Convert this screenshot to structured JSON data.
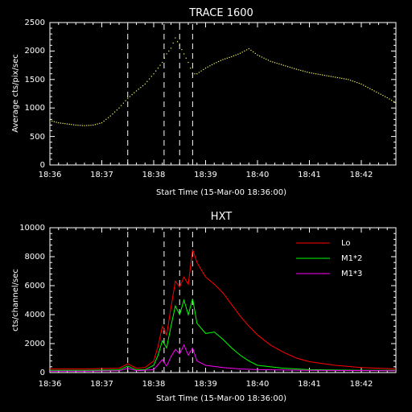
{
  "chart_data": [
    {
      "type": "scatter",
      "title": "TRACE 1600",
      "xlabel": "Start Time (15-Mar-00 18:36:00)",
      "ylabel": "Average cts/pix/sec",
      "xlim": [
        "18:36:00",
        "18:42:40"
      ],
      "ylim": [
        0,
        2500
      ],
      "x_ticks": [
        "18:36",
        "18:37",
        "18:38",
        "18:39",
        "18:40",
        "18:41",
        "18:42"
      ],
      "y_ticks": [
        "0",
        "500",
        "1000",
        "1500",
        "2000",
        "2500"
      ],
      "vlines": [
        "18:37:30",
        "18:38:12",
        "18:38:30",
        "18:38:45"
      ],
      "series": [
        {
          "color": "#ffff66",
          "points": [
            [
              "18:36:00",
              780
            ],
            [
              "18:36:10",
              740
            ],
            [
              "18:36:20",
              720
            ],
            [
              "18:36:30",
              700
            ],
            [
              "18:36:40",
              690
            ],
            [
              "18:36:50",
              700
            ],
            [
              "18:37:00",
              740
            ],
            [
              "18:37:10",
              860
            ],
            [
              "18:37:20",
              1000
            ],
            [
              "18:37:30",
              1170
            ],
            [
              "18:37:40",
              1300
            ],
            [
              "18:37:50",
              1420
            ],
            [
              "18:38:00",
              1600
            ],
            [
              "18:38:05",
              1700
            ],
            [
              "18:38:10",
              1800
            ],
            [
              "18:38:15",
              1950
            ],
            [
              "18:38:20",
              2050
            ],
            [
              "18:38:25",
              2230
            ],
            [
              "18:38:30",
              2100
            ],
            [
              "18:38:35",
              1950
            ],
            [
              "18:38:40",
              1800
            ],
            [
              "18:38:45",
              1600
            ],
            [
              "18:38:50",
              1600
            ],
            [
              "18:39:00",
              1700
            ],
            [
              "18:39:10",
              1780
            ],
            [
              "18:39:20",
              1850
            ],
            [
              "18:39:30",
              1900
            ],
            [
              "18:39:40",
              1960
            ],
            [
              "18:39:50",
              2040
            ],
            [
              "18:40:00",
              1930
            ],
            [
              "18:40:15",
              1820
            ],
            [
              "18:40:30",
              1750
            ],
            [
              "18:40:45",
              1680
            ],
            [
              "18:41:00",
              1620
            ],
            [
              "18:41:15",
              1580
            ],
            [
              "18:41:30",
              1540
            ],
            [
              "18:41:45",
              1500
            ],
            [
              "18:42:00",
              1420
            ],
            [
              "18:42:15",
              1300
            ],
            [
              "18:42:30",
              1180
            ],
            [
              "18:42:40",
              1090
            ]
          ]
        }
      ]
    },
    {
      "type": "line",
      "title": "HXT",
      "xlabel": "Start Time (15-Mar-00 18:36:00)",
      "ylabel": "cts/channel/sec",
      "xlim": [
        "18:36:00",
        "18:42:40"
      ],
      "ylim": [
        0,
        10000
      ],
      "x_ticks": [
        "18:36",
        "18:37",
        "18:38",
        "18:39",
        "18:40",
        "18:41",
        "18:42"
      ],
      "y_ticks": [
        "0",
        "2000",
        "4000",
        "6000",
        "8000",
        "10000"
      ],
      "vlines": [
        "18:37:30",
        "18:38:12",
        "18:38:30",
        "18:38:45"
      ],
      "legend_position": "top-right",
      "series": [
        {
          "name": "Lo",
          "color": "#ff0000",
          "points": [
            [
              "18:36:00",
              250
            ],
            [
              "18:36:40",
              250
            ],
            [
              "18:37:20",
              300
            ],
            [
              "18:37:30",
              600
            ],
            [
              "18:37:40",
              300
            ],
            [
              "18:37:50",
              350
            ],
            [
              "18:38:00",
              800
            ],
            [
              "18:38:05",
              1800
            ],
            [
              "18:38:10",
              3200
            ],
            [
              "18:38:15",
              2600
            ],
            [
              "18:38:20",
              4500
            ],
            [
              "18:38:25",
              6300
            ],
            [
              "18:38:30",
              5900
            ],
            [
              "18:38:35",
              6600
            ],
            [
              "18:38:40",
              6100
            ],
            [
              "18:38:45",
              8500
            ],
            [
              "18:38:50",
              7600
            ],
            [
              "18:39:00",
              6600
            ],
            [
              "18:39:10",
              6100
            ],
            [
              "18:39:20",
              5500
            ],
            [
              "18:39:30",
              4700
            ],
            [
              "18:39:40",
              3900
            ],
            [
              "18:39:50",
              3200
            ],
            [
              "18:40:00",
              2600
            ],
            [
              "18:40:15",
              1900
            ],
            [
              "18:40:30",
              1400
            ],
            [
              "18:40:45",
              1000
            ],
            [
              "18:41:00",
              750
            ],
            [
              "18:41:30",
              500
            ],
            [
              "18:42:00",
              350
            ],
            [
              "18:42:40",
              250
            ]
          ]
        },
        {
          "name": "M1*2",
          "color": "#00ff00",
          "points": [
            [
              "18:36:00",
              150
            ],
            [
              "18:36:40",
              150
            ],
            [
              "18:37:20",
              180
            ],
            [
              "18:37:30",
              450
            ],
            [
              "18:37:40",
              180
            ],
            [
              "18:37:50",
              200
            ],
            [
              "18:38:00",
              500
            ],
            [
              "18:38:05",
              1200
            ],
            [
              "18:38:10",
              2200
            ],
            [
              "18:38:15",
              1700
            ],
            [
              "18:38:20",
              3200
            ],
            [
              "18:38:25",
              4600
            ],
            [
              "18:38:30",
              4000
            ],
            [
              "18:38:35",
              5000
            ],
            [
              "18:38:40",
              4000
            ],
            [
              "18:38:45",
              5100
            ],
            [
              "18:38:50",
              3400
            ],
            [
              "18:39:00",
              2700
            ],
            [
              "18:39:10",
              2800
            ],
            [
              "18:39:20",
              2300
            ],
            [
              "18:39:30",
              1700
            ],
            [
              "18:39:40",
              1200
            ],
            [
              "18:39:50",
              800
            ],
            [
              "18:40:00",
              500
            ],
            [
              "18:40:30",
              300
            ],
            [
              "18:41:00",
              200
            ],
            [
              "18:42:00",
              150
            ],
            [
              "18:42:40",
              150
            ]
          ]
        },
        {
          "name": "M1*3",
          "color": "#ff00ff",
          "points": [
            [
              "18:36:00",
              100
            ],
            [
              "18:36:40",
              100
            ],
            [
              "18:37:20",
              120
            ],
            [
              "18:37:30",
              300
            ],
            [
              "18:37:40",
              120
            ],
            [
              "18:38:00",
              200
            ],
            [
              "18:38:10",
              900
            ],
            [
              "18:38:15",
              450
            ],
            [
              "18:38:20",
              1100
            ],
            [
              "18:38:25",
              1600
            ],
            [
              "18:38:30",
              1300
            ],
            [
              "18:38:35",
              1900
            ],
            [
              "18:38:40",
              1200
            ],
            [
              "18:38:45",
              1700
            ],
            [
              "18:38:50",
              800
            ],
            [
              "18:39:00",
              500
            ],
            [
              "18:39:20",
              350
            ],
            [
              "18:39:40",
              250
            ],
            [
              "18:40:00",
              200
            ],
            [
              "18:41:00",
              150
            ],
            [
              "18:42:40",
              120
            ]
          ]
        }
      ]
    }
  ]
}
